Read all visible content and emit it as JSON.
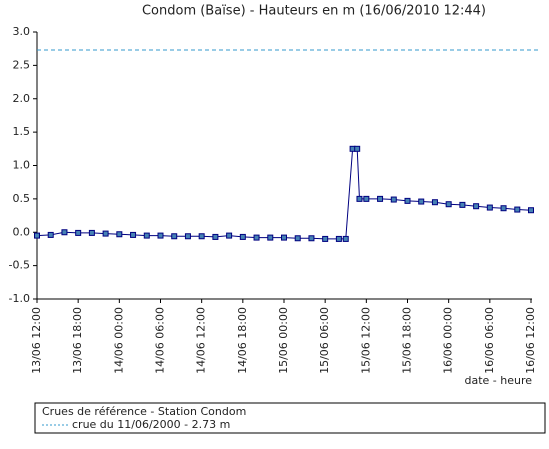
{
  "chart_data": {
    "type": "line",
    "title": "Condom (Baïse) - Hauteurs en m (16/06/2010 12:44)",
    "x_label": "date - heure",
    "x": [
      "13/06 12:00",
      "13/06 14:00",
      "13/06 16:00",
      "13/06 18:00",
      "13/06 20:00",
      "13/06 22:00",
      "14/06 00:00",
      "14/06 02:00",
      "14/06 04:00",
      "14/06 06:00",
      "14/06 08:00",
      "14/06 10:00",
      "14/06 12:00",
      "14/06 14:00",
      "14/06 16:00",
      "14/06 18:00",
      "14/06 20:00",
      "14/06 22:00",
      "15/06 00:00",
      "15/06 02:00",
      "15/06 04:00",
      "15/06 06:00",
      "15/06 08:00",
      "15/06 09:00",
      "15/06 10:00",
      "15/06 10:40",
      "15/06 11:00",
      "15/06 12:00",
      "15/06 14:00",
      "15/06 16:00",
      "15/06 18:00",
      "15/06 20:00",
      "15/06 22:00",
      "16/06 00:00",
      "16/06 02:00",
      "16/06 04:00",
      "16/06 06:00",
      "16/06 08:00",
      "16/06 10:00",
      "16/06 12:00"
    ],
    "series": [
      {
        "color": "#000080",
        "values": [
          -0.05,
          -0.04,
          0.0,
          -0.01,
          -0.01,
          -0.02,
          -0.03,
          -0.04,
          -0.05,
          -0.05,
          -0.06,
          -0.06,
          -0.06,
          -0.07,
          -0.05,
          -0.07,
          -0.08,
          -0.08,
          -0.08,
          -0.09,
          -0.09,
          -0.1,
          -0.1,
          -0.1,
          1.25,
          1.25,
          0.5,
          0.5,
          0.5,
          0.49,
          0.47,
          0.46,
          0.45,
          0.42,
          0.41,
          0.39,
          0.37,
          0.36,
          0.34,
          0.33
        ]
      }
    ],
    "xlim": [
      "13/06 12:00",
      "16/06 12:00"
    ],
    "xticks": [
      "13/06 12:00",
      "13/06 18:00",
      "14/06 00:00",
      "14/06 06:00",
      "14/06 12:00",
      "14/06 18:00",
      "15/06 00:00",
      "15/06 06:00",
      "15/06 12:00",
      "15/06 18:00",
      "16/06 00:00",
      "16/06 06:00",
      "16/06 12:00"
    ],
    "ylim": [
      -1,
      3
    ],
    "yticks": [
      {
        "value": -1,
        "label": "-1.0"
      },
      -0.5,
      {
        "value": 0,
        "label": "0.0"
      },
      0.5,
      {
        "value": 1,
        "label": "1.0"
      },
      1.5,
      {
        "value": 2,
        "label": "2.0"
      },
      2.5,
      {
        "value": 3,
        "label": "3.0"
      }
    ],
    "reference": {
      "title": "Crues de référence - Station Condom",
      "label": "crue du 11/06/2000 - 2.73 m",
      "value": 2.73,
      "color": "#3399cc"
    }
  }
}
